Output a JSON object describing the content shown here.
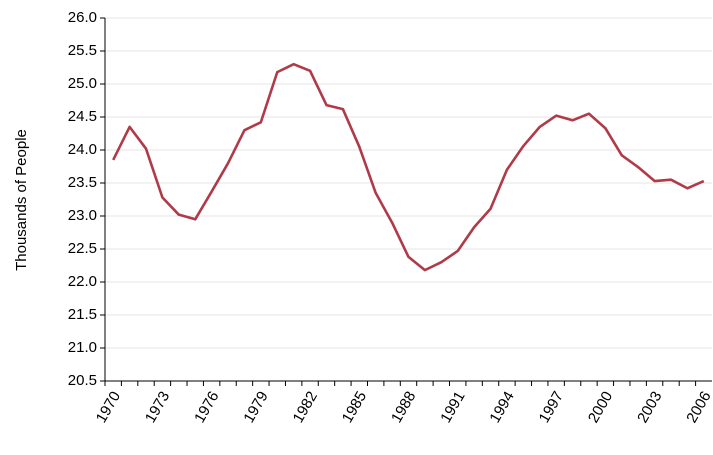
{
  "chart_data": {
    "type": "line",
    "y_label": "Thousands of People",
    "categories": [
      "1970",
      null,
      null,
      "1973",
      null,
      null,
      "1976",
      null,
      null,
      "1979",
      null,
      null,
      "1982",
      null,
      null,
      "1985",
      null,
      null,
      "1988",
      null,
      null,
      "1991",
      null,
      null,
      "1994",
      null,
      null,
      "1997",
      null,
      null,
      "2000",
      null,
      null,
      "2003",
      null,
      null,
      "2006"
    ],
    "series": [
      {
        "name": "Thousands of People",
        "color": "#b03a48",
        "values": [
          23.85,
          24.35,
          24.02,
          23.28,
          23.02,
          22.95,
          23.37,
          23.8,
          24.3,
          24.42,
          25.18,
          25.3,
          25.2,
          24.68,
          24.62,
          24.05,
          23.35,
          22.9,
          22.38,
          22.18,
          22.3,
          22.47,
          22.83,
          23.11,
          23.7,
          24.06,
          24.35,
          24.52,
          24.45,
          24.55,
          24.33,
          23.92,
          23.74,
          23.53,
          23.55,
          23.42,
          23.53
        ]
      }
    ],
    "ylim": [
      20.5,
      26
    ],
    "yticks": [
      20.5,
      {
        "value": 21,
        "label": "21.0"
      },
      21.5,
      {
        "value": 22,
        "label": "22.0"
      },
      22.5,
      {
        "value": 23,
        "label": "23.0"
      },
      23.5,
      {
        "value": 24,
        "label": "24.0"
      },
      24.5,
      {
        "value": 25,
        "label": "25.0"
      },
      25.5,
      {
        "value": 26,
        "label": "26.0"
      }
    ],
    "grid": true
  }
}
